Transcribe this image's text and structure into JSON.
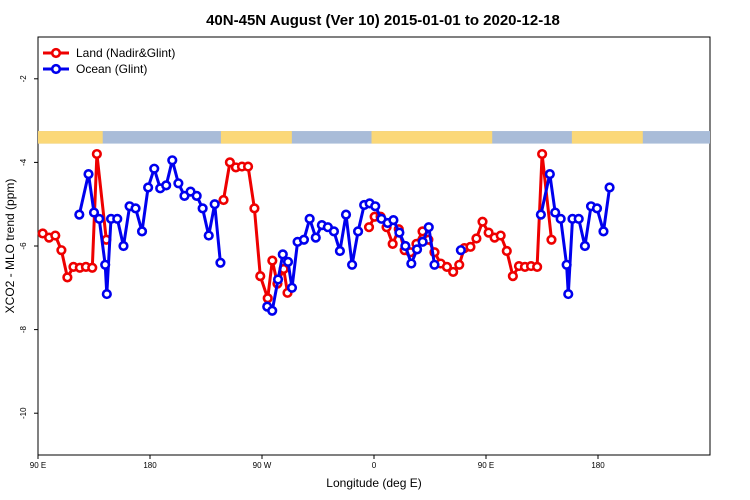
{
  "chart_data": {
    "type": "line",
    "title": "40N-45N August (Ver 10)   2015-01-01 to 2020-12-18",
    "xlabel": "Longitude (deg E)",
    "ylabel": "XCO2 - MLO trend (ppm)",
    "xlim": [
      0,
      540
    ],
    "ylim": [
      -11,
      -1
    ],
    "x_ticks": [
      {
        "value": 0,
        "label": "90 E"
      },
      {
        "value": 90,
        "label": "180"
      },
      {
        "value": 180,
        "label": "90 W"
      },
      {
        "value": 270,
        "label": "0"
      },
      {
        "value": 360,
        "label": "90 E"
      },
      {
        "value": 450,
        "label": "180"
      }
    ],
    "y_ticks": [
      {
        "value": -2,
        "label": "-2"
      },
      {
        "value": -4,
        "label": "-4"
      },
      {
        "value": -6,
        "label": "-6"
      },
      {
        "value": -8,
        "label": "-8"
      },
      {
        "value": -10,
        "label": "-10"
      }
    ],
    "legend_position": "top-left",
    "surface_strip": {
      "y_range": [
        -3.55,
        -3.25
      ],
      "land_color": "#fbd878",
      "ocean_color": "#a9bcd8",
      "land_segments": [
        [
          0,
          52
        ],
        [
          147,
          204
        ],
        [
          268,
          365
        ],
        [
          429,
          486
        ]
      ]
    },
    "series": [
      {
        "name": "Land (Nadir&Glint)",
        "color": "#ee0000",
        "points": [
          [
            3.8,
            -5.7
          ],
          [
            8.9,
            -5.8
          ],
          [
            13.9,
            -5.75
          ],
          [
            18.8,
            -6.1
          ],
          [
            23.6,
            -6.75
          ],
          [
            28.5,
            -6.5
          ],
          [
            33.6,
            -6.52
          ],
          [
            38.5,
            -6.5
          ],
          [
            43.6,
            -6.52
          ],
          [
            47.3,
            -3.8
          ],
          [
            54.9,
            -5.85
          ],
          [
            null,
            null
          ],
          [
            149.1,
            -4.9
          ],
          [
            154.2,
            -4.0
          ],
          [
            159.0,
            -4.12
          ],
          [
            163.9,
            -4.1
          ],
          [
            168.8,
            -4.1
          ],
          [
            173.9,
            -5.1
          ],
          [
            178.6,
            -6.72
          ],
          [
            184.6,
            -7.25
          ],
          [
            188.3,
            -6.35
          ],
          [
            192.4,
            -6.9
          ],
          [
            197.4,
            -6.55
          ],
          [
            200.5,
            -7.12
          ],
          [
            null,
            null
          ],
          [
            266.0,
            -5.55
          ],
          [
            270.5,
            -5.3
          ],
          [
            275.3,
            -5.3
          ],
          [
            280.1,
            -5.55
          ],
          [
            285.0,
            -5.95
          ],
          [
            289.9,
            -5.6
          ],
          [
            294.6,
            -6.1
          ],
          [
            299.3,
            -6.15
          ],
          [
            304.1,
            -5.95
          ],
          [
            309.0,
            -5.65
          ],
          [
            313.7,
            -5.85
          ],
          [
            318.6,
            -6.15
          ],
          [
            323.6,
            -6.42
          ],
          [
            328.6,
            -6.5
          ],
          [
            333.6,
            -6.62
          ],
          [
            338.5,
            -6.45
          ],
          [
            342.6,
            -6.05
          ],
          [
            347.5,
            -6.02
          ],
          [
            352.3,
            -5.82
          ],
          [
            357.2,
            -5.42
          ],
          [
            362.1,
            -5.68
          ],
          [
            366.9,
            -5.8
          ],
          [
            371.8,
            -5.75
          ],
          [
            376.7,
            -6.12
          ],
          [
            381.6,
            -6.72
          ],
          [
            386.5,
            -6.48
          ],
          [
            391.3,
            -6.5
          ],
          [
            396.2,
            -6.48
          ],
          [
            401.1,
            -6.5
          ],
          [
            405.1,
            -3.8
          ],
          [
            412.6,
            -5.85
          ]
        ]
      },
      {
        "name": "Ocean (Glint)",
        "color": "#0000ee",
        "points": [
          [
            33.2,
            -5.25
          ],
          [
            40.6,
            -4.28
          ],
          [
            45.0,
            -5.2
          ],
          [
            49.2,
            -5.35
          ],
          [
            54.0,
            -6.45
          ],
          [
            55.3,
            -7.15
          ],
          [
            58.7,
            -5.35
          ],
          [
            63.7,
            -5.35
          ],
          [
            68.7,
            -6.0
          ],
          [
            73.6,
            -5.05
          ],
          [
            78.4,
            -5.1
          ],
          [
            83.6,
            -5.65
          ],
          [
            88.5,
            -4.6
          ],
          [
            93.4,
            -4.15
          ],
          [
            98.2,
            -4.62
          ],
          [
            103.0,
            -4.55
          ],
          [
            107.9,
            -3.95
          ],
          [
            112.8,
            -4.5
          ],
          [
            117.7,
            -4.8
          ],
          [
            122.6,
            -4.7
          ],
          [
            127.5,
            -4.8
          ],
          [
            132.3,
            -5.1
          ],
          [
            137.2,
            -5.75
          ],
          [
            142.0,
            -5.0
          ],
          [
            146.6,
            -6.4
          ],
          [
            null,
            null
          ],
          [
            184.2,
            -7.45
          ],
          [
            188.2,
            -7.55
          ],
          [
            192.9,
            -6.8
          ],
          [
            196.7,
            -6.2
          ],
          [
            200.9,
            -6.38
          ],
          [
            204.1,
            -7.0
          ],
          [
            208.6,
            -5.9
          ],
          [
            213.7,
            -5.85
          ],
          [
            218.3,
            -5.35
          ],
          [
            223.2,
            -5.8
          ],
          [
            228.1,
            -5.5
          ],
          [
            232.9,
            -5.55
          ],
          [
            237.8,
            -5.65
          ],
          [
            242.6,
            -6.12
          ],
          [
            247.5,
            -5.25
          ],
          [
            252.4,
            -6.45
          ],
          [
            257.2,
            -5.65
          ],
          [
            262.1,
            -5.02
          ],
          [
            266.5,
            -4.98
          ],
          [
            271.0,
            -5.05
          ],
          [
            276.0,
            -5.35
          ],
          [
            281.0,
            -5.45
          ],
          [
            285.6,
            -5.38
          ],
          [
            290.4,
            -5.68
          ],
          [
            295.2,
            -6.0
          ],
          [
            300.0,
            -6.42
          ],
          [
            304.6,
            -6.08
          ],
          [
            309.1,
            -5.9
          ],
          [
            314.0,
            -5.55
          ],
          [
            318.6,
            -6.45
          ],
          [
            null,
            null
          ],
          [
            339.8,
            -6.1
          ],
          [
            null,
            null
          ],
          [
            404.1,
            -5.25
          ],
          [
            411.3,
            -4.28
          ],
          [
            415.6,
            -5.2
          ],
          [
            420.0,
            -5.35
          ],
          [
            424.8,
            -6.45
          ],
          [
            426.1,
            -7.15
          ],
          [
            429.5,
            -5.35
          ],
          [
            434.5,
            -5.35
          ],
          [
            439.5,
            -6.0
          ],
          [
            444.4,
            -5.05
          ],
          [
            449.2,
            -5.1
          ],
          [
            454.4,
            -5.65
          ],
          [
            459.3,
            -4.6
          ]
        ]
      }
    ]
  }
}
